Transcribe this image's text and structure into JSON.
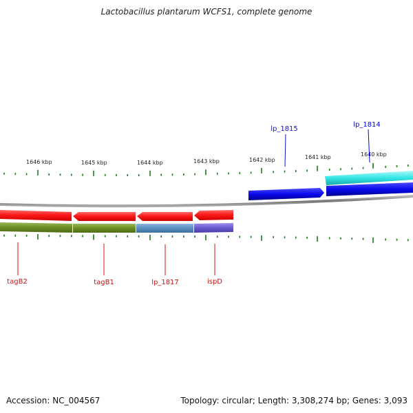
{
  "title": "Lactobacillus plantarum WCFS1, complete genome",
  "footer": {
    "accession": "Accession: NC_004567",
    "summary": "Topology: circular; Length: 3,308,274 bp; Genes: 3,093"
  },
  "ruler": [
    "1646 kbp",
    "1645 kbp",
    "1644 kbp",
    "1643 kbp",
    "1642 kbp",
    "1641 kbp",
    "1640 kbp"
  ],
  "genes": [
    {
      "label": "lp_1815",
      "strand": "forward",
      "color": "#1212c8"
    },
    {
      "label": "lp_1814",
      "strand": "forward",
      "color": "#0000e6"
    },
    {
      "label": "tagB2",
      "strand": "reverse",
      "color": "#cc1111"
    },
    {
      "label": "tagB1",
      "strand": "reverse",
      "color": "#cc1111"
    },
    {
      "label": "lp_1817",
      "strand": "reverse",
      "color": "#cc1111"
    },
    {
      "label": "ispD",
      "strand": "reverse",
      "color": "#cc1111"
    }
  ],
  "colors": {
    "forward_gene": "#0a0aee",
    "reverse_gene": "#ff1a1a",
    "cds_highlight": "#33e6e6",
    "cog_olive": "#6b8e23",
    "cog_steelblue": "#5a8fc0",
    "cog_slate": "#6a5acd",
    "backbone": "#888888",
    "tick": "#1a7a1a"
  }
}
